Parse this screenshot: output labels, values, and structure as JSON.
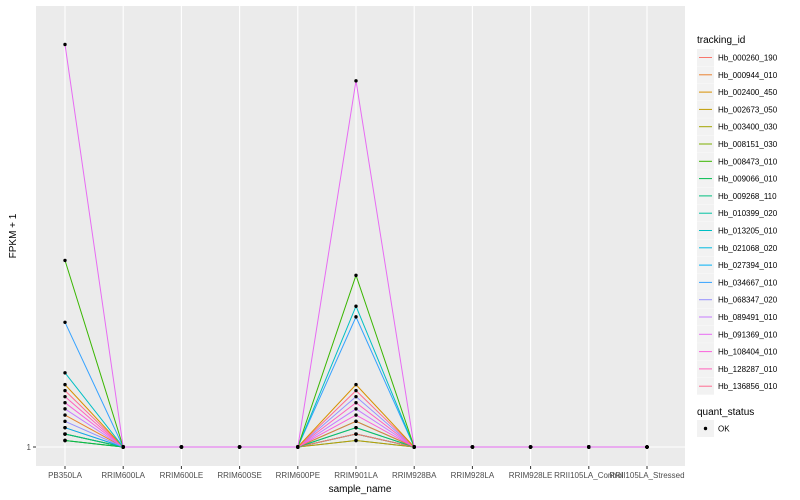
{
  "chart_data": {
    "type": "line",
    "xlabel": "sample_name",
    "ylabel": "FPKM + 1",
    "y_scale": "log",
    "y_ticks": [
      1
    ],
    "y_tick_labels": [
      "1"
    ],
    "ylim": [
      1,
      1.9
    ],
    "grid": true,
    "legend_position": "right",
    "categories": [
      "PB350LA",
      "RRIM600LA",
      "RRIM600LE",
      "RRIM600SE",
      "RRIM600PE",
      "RRIM901LA",
      "RRIM928BA",
      "RRIM928LA",
      "RRIM928LE",
      "RRII105LA_Control",
      "RRII105LA_Stressed"
    ],
    "color_legend": {
      "title": "tracking_id",
      "entries": [
        {
          "name": "Hb_000260_190",
          "color": "#F8766D"
        },
        {
          "name": "Hb_000944_010",
          "color": "#EA8331"
        },
        {
          "name": "Hb_002400_450",
          "color": "#D89000"
        },
        {
          "name": "Hb_002673_050",
          "color": "#C09B00"
        },
        {
          "name": "Hb_003400_030",
          "color": "#A3A500"
        },
        {
          "name": "Hb_008151_030",
          "color": "#7CAE00"
        },
        {
          "name": "Hb_008473_010",
          "color": "#39B600"
        },
        {
          "name": "Hb_009066_010",
          "color": "#00BB4E"
        },
        {
          "name": "Hb_009268_110",
          "color": "#00BF7D"
        },
        {
          "name": "Hb_010399_020",
          "color": "#00C1A3"
        },
        {
          "name": "Hb_013205_010",
          "color": "#00BFC4"
        },
        {
          "name": "Hb_021068_020",
          "color": "#00BAE0"
        },
        {
          "name": "Hb_027394_010",
          "color": "#00B0F6"
        },
        {
          "name": "Hb_034667_010",
          "color": "#35A2FF"
        },
        {
          "name": "Hb_068347_020",
          "color": "#9590FF"
        },
        {
          "name": "Hb_089491_010",
          "color": "#C77CFF"
        },
        {
          "name": "Hb_091369_010",
          "color": "#E76BF3"
        },
        {
          "name": "Hb_108404_010",
          "color": "#FA62DB"
        },
        {
          "name": "Hb_128287_010",
          "color": "#FF62BC"
        },
        {
          "name": "Hb_136856_010",
          "color": "#FF6C91"
        }
      ]
    },
    "shape_legend": {
      "title": "quant_status",
      "entries": [
        {
          "name": "OK"
        }
      ]
    },
    "series": [
      {
        "name": "Hb_000260_190",
        "values": [
          1.03,
          1,
          1,
          1,
          1,
          1.02,
          1,
          1,
          1,
          1,
          1
        ]
      },
      {
        "name": "Hb_000944_010",
        "values": [
          1.05,
          1,
          1,
          1,
          1,
          1.04,
          1,
          1,
          1,
          1,
          1
        ]
      },
      {
        "name": "Hb_002400_450",
        "values": [
          1.1,
          1,
          1,
          1,
          1,
          1.1,
          1,
          1,
          1,
          1,
          1
        ]
      },
      {
        "name": "Hb_002673_050",
        "values": [
          1.02,
          1,
          1,
          1,
          1,
          1.01,
          1,
          1,
          1,
          1,
          1
        ]
      },
      {
        "name": "Hb_003400_030",
        "values": [
          1.01,
          1,
          1,
          1,
          1,
          1.02,
          1,
          1,
          1,
          1,
          1
        ]
      },
      {
        "name": "Hb_008151_030",
        "values": [
          1.02,
          1,
          1,
          1,
          1,
          1.03,
          1,
          1,
          1,
          1,
          1
        ]
      },
      {
        "name": "Hb_008473_010",
        "values": [
          1.33,
          1,
          1,
          1,
          1,
          1.3,
          1,
          1,
          1,
          1,
          1
        ]
      },
      {
        "name": "Hb_009066_010",
        "values": [
          1.01,
          1,
          1,
          1,
          1,
          1.02,
          1,
          1,
          1,
          1,
          1
        ]
      },
      {
        "name": "Hb_009268_110",
        "values": [
          1.02,
          1,
          1,
          1,
          1,
          1.03,
          1,
          1,
          1,
          1,
          1
        ]
      },
      {
        "name": "Hb_010399_020",
        "values": [
          1.01,
          1,
          1,
          1,
          1,
          1.01,
          1,
          1,
          1,
          1,
          1
        ]
      },
      {
        "name": "Hb_013205_010",
        "values": [
          1.12,
          1,
          1,
          1,
          1,
          1.24,
          1,
          1,
          1,
          1,
          1
        ]
      },
      {
        "name": "Hb_021068_020",
        "values": [
          1.02,
          1,
          1,
          1,
          1,
          1.02,
          1,
          1,
          1,
          1,
          1
        ]
      },
      {
        "name": "Hb_027394_010",
        "values": [
          1.03,
          1,
          1,
          1,
          1,
          1.04,
          1,
          1,
          1,
          1,
          1
        ]
      },
      {
        "name": "Hb_034667_010",
        "values": [
          1.21,
          1,
          1,
          1,
          1,
          1.22,
          1,
          1,
          1,
          1,
          1
        ]
      },
      {
        "name": "Hb_068347_020",
        "values": [
          1.04,
          1,
          1,
          1,
          1,
          1.08,
          1,
          1,
          1,
          1,
          1
        ]
      },
      {
        "name": "Hb_089491_010",
        "values": [
          1.06,
          1,
          1,
          1,
          1,
          1.06,
          1,
          1,
          1,
          1,
          1
        ]
      },
      {
        "name": "Hb_091369_010",
        "values": [
          1.85,
          1,
          1,
          1,
          1,
          1.75,
          1,
          1,
          1,
          1,
          1
        ]
      },
      {
        "name": "Hb_108404_010",
        "values": [
          1.07,
          1,
          1,
          1,
          1,
          1.05,
          1,
          1,
          1,
          1,
          1
        ]
      },
      {
        "name": "Hb_128287_010",
        "values": [
          1.08,
          1,
          1,
          1,
          1,
          1.07,
          1,
          1,
          1,
          1,
          1
        ]
      },
      {
        "name": "Hb_136856_010",
        "values": [
          1.09,
          1,
          1,
          1,
          1,
          1.09,
          1,
          1,
          1,
          1,
          1
        ]
      }
    ]
  }
}
